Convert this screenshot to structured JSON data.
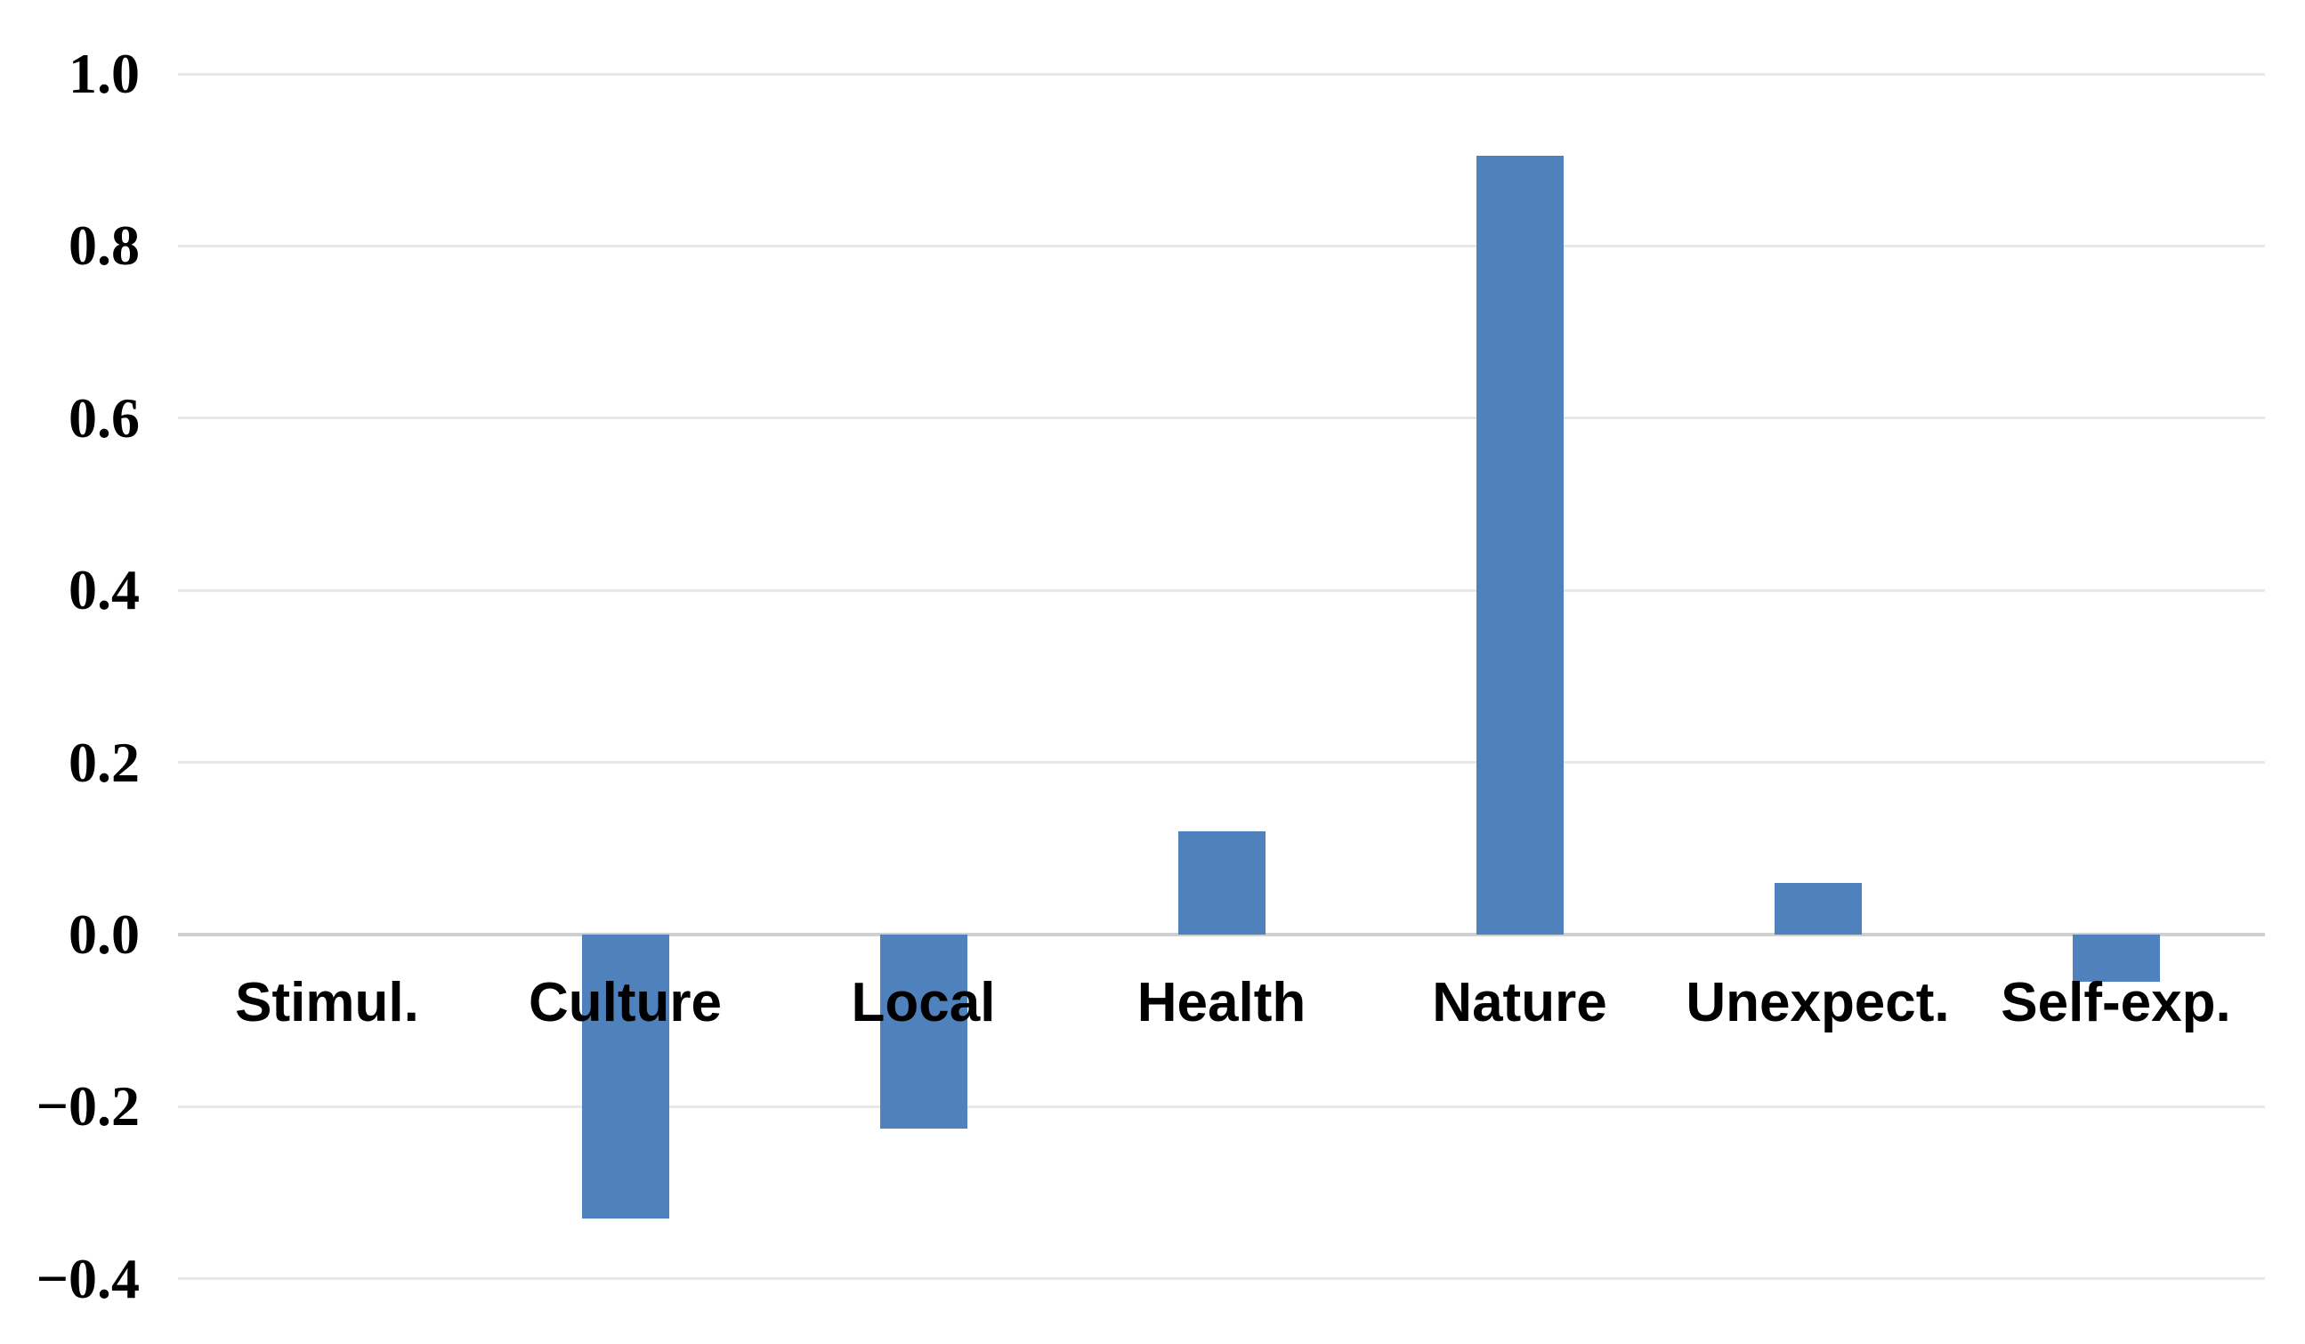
{
  "chart_data": {
    "type": "bar",
    "title": "",
    "xlabel": "",
    "ylabel": "",
    "categories": [
      "Stimul.",
      "Culture",
      "Local",
      "Health",
      "Nature",
      "Unexpect.",
      "Self-exp."
    ],
    "values": [
      0.0,
      -0.33,
      -0.225,
      0.12,
      0.905,
      0.06,
      -0.055
    ],
    "ylim": [
      -0.4,
      1.0
    ],
    "yticks": [
      1.0,
      0.8,
      0.6,
      0.4,
      0.2,
      0.0,
      -0.2,
      -0.4
    ],
    "ytick_labels": [
      "1.0",
      "0.8",
      "0.6",
      "0.4",
      "0.2",
      "0.0",
      "−0.2",
      "−0.4"
    ],
    "grid": true,
    "legend": false,
    "bar_color": "#4F81BD",
    "gridline_color": "#e8e8e8",
    "zero_axis_color": "#cfcfcf",
    "background_color": "#ffffff",
    "tick_label_color": "#000000",
    "category_label_color": "#000000"
  }
}
